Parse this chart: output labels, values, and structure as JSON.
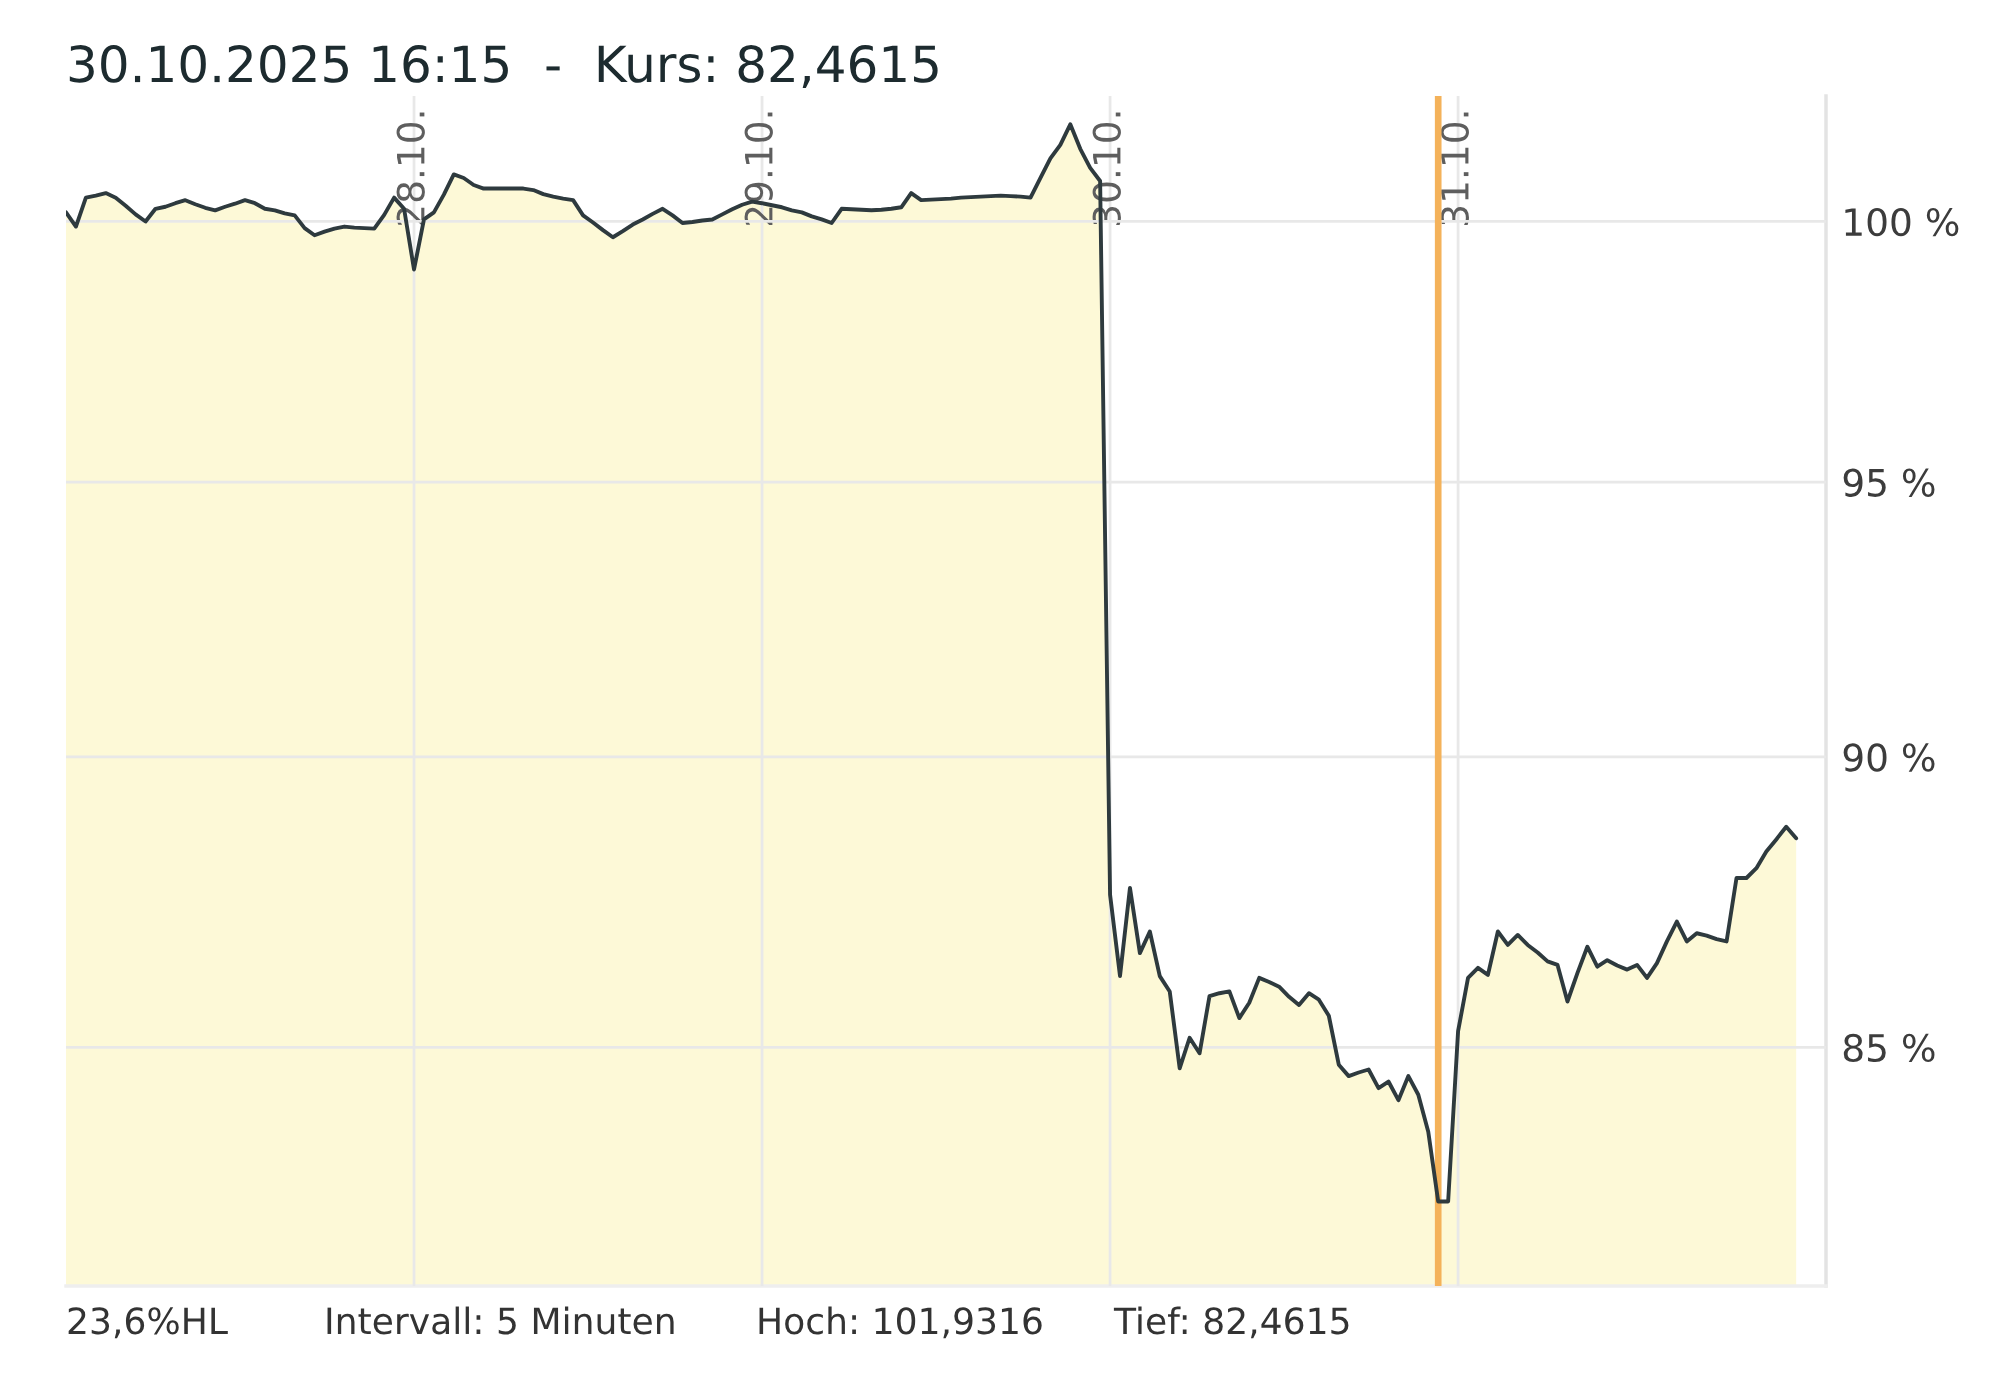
{
  "chart_data": {
    "type": "area",
    "title": "30.10.2025 16:15  -  Kurs: 82,4615",
    "annotations": [
      "23,6%HL",
      "Intervall: 5 Minuten",
      "Hoch: 101,9316",
      "Tief: 82,4615"
    ],
    "categories": [
      null,
      null,
      null,
      null,
      null,
      null,
      null,
      null,
      null,
      null,
      null,
      null,
      null,
      null,
      null,
      null,
      null,
      null,
      null,
      null,
      null,
      null,
      null,
      null,
      null,
      null,
      null,
      null,
      null,
      null,
      null,
      null,
      null,
      null,
      null,
      "28.10.",
      null,
      null,
      null,
      null,
      null,
      null,
      null,
      null,
      null,
      null,
      null,
      null,
      null,
      null,
      null,
      null,
      null,
      null,
      null,
      null,
      null,
      null,
      null,
      null,
      null,
      null,
      null,
      null,
      null,
      null,
      null,
      null,
      null,
      null,
      "29.10.",
      null,
      null,
      null,
      null,
      null,
      null,
      null,
      null,
      null,
      null,
      null,
      null,
      null,
      null,
      null,
      null,
      null,
      null,
      null,
      null,
      null,
      null,
      null,
      null,
      null,
      null,
      null,
      null,
      null,
      null,
      null,
      null,
      null,
      null,
      "30.10.",
      null,
      null,
      null,
      null,
      null,
      null,
      null,
      null,
      null,
      null,
      null,
      null,
      null,
      null,
      null,
      null,
      null,
      null,
      null,
      null,
      null,
      null,
      null,
      null,
      null,
      null,
      null,
      null,
      null,
      null,
      null,
      null,
      null,
      null,
      "31.10.",
      null,
      null,
      null,
      null,
      null,
      null,
      null,
      null,
      null,
      null,
      null,
      null,
      null,
      null,
      null,
      null,
      null,
      null,
      null,
      null,
      null,
      null,
      null,
      null,
      null,
      null,
      null,
      null,
      null,
      null,
      null,
      null,
      null,
      null,
      null,
      null,
      null
    ],
    "series": [
      {
        "color": "#fdf9d7",
        "values": [
          100.18,
          99.9,
          100.47,
          100.51,
          100.56,
          100.47,
          100.31,
          100.14,
          100.0,
          100.25,
          100.29,
          100.36,
          100.42,
          100.34,
          100.27,
          100.22,
          100.29,
          100.35,
          100.42,
          100.36,
          100.25,
          100.22,
          100.16,
          100.12,
          99.87,
          99.73,
          99.8,
          99.86,
          99.9,
          99.88,
          99.87,
          99.86,
          100.13,
          100.47,
          100.25,
          99.06,
          100.04,
          100.18,
          100.53,
          100.93,
          100.86,
          100.72,
          100.65,
          100.65,
          100.65,
          100.65,
          100.65,
          100.62,
          100.54,
          100.49,
          100.45,
          100.42,
          100.12,
          99.98,
          99.83,
          99.69,
          99.81,
          99.94,
          100.04,
          100.15,
          100.25,
          100.12,
          99.97,
          99.99,
          100.02,
          100.04,
          100.14,
          100.24,
          100.33,
          100.39,
          100.36,
          100.32,
          100.28,
          100.22,
          100.18,
          100.1,
          100.04,
          99.97,
          100.25,
          100.24,
          100.23,
          100.22,
          100.23,
          100.25,
          100.28,
          100.56,
          100.42,
          100.43,
          100.44,
          100.45,
          100.47,
          100.48,
          100.49,
          100.5,
          100.51,
          100.5,
          100.49,
          100.47,
          100.86,
          101.25,
          101.52,
          101.93,
          101.44,
          101.06,
          100.8,
          87.59,
          86.2,
          87.71,
          86.59,
          86.96,
          86.2,
          85.94,
          84.65,
          85.16,
          84.9,
          85.86,
          85.91,
          85.94,
          85.49,
          85.75,
          86.17,
          86.1,
          86.02,
          85.85,
          85.71,
          85.91,
          85.8,
          85.53,
          84.71,
          84.52,
          84.58,
          84.63,
          84.32,
          84.43,
          84.12,
          84.52,
          84.21,
          83.6,
          82.46,
          82.46,
          85.27,
          86.17,
          86.34,
          86.22,
          86.96,
          86.73,
          86.9,
          86.73,
          86.6,
          86.45,
          86.39,
          85.77,
          86.25,
          86.7,
          86.36,
          86.47,
          86.38,
          86.31,
          86.39,
          86.17,
          86.42,
          86.79,
          87.13,
          86.79,
          86.93,
          86.89,
          86.83,
          86.79,
          87.88,
          87.88,
          88.05,
          88.34,
          88.55,
          88.77,
          88.57,
          null,
          null,
          null
        ]
      }
    ],
    "ylim": [
      81.1,
      102.5
    ],
    "yticks": [
      {
        "value": 85,
        "label": "85 %"
      },
      {
        "value": 90,
        "label": "90 %"
      },
      {
        "value": 95,
        "label": "95 %"
      },
      {
        "value": 100,
        "label": "100 %"
      }
    ],
    "log": true,
    "grid": true
  }
}
